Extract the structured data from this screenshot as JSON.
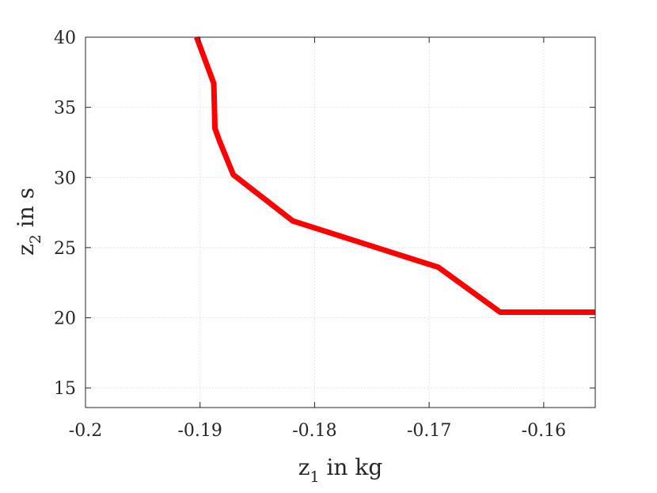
{
  "chart_data": {
    "type": "line",
    "xlabel": {
      "base": "z",
      "sub": "1",
      "rest": " in kg"
    },
    "ylabel": {
      "base": "z",
      "sub": "2",
      "rest": " in s"
    },
    "xlim": [
      -0.2,
      -0.1555
    ],
    "ylim": [
      13.6,
      40
    ],
    "xticks": [
      -0.2,
      -0.19,
      -0.18,
      -0.17,
      -0.16
    ],
    "xtick_labels": [
      "-0.2",
      "-0.19",
      "-0.18",
      "-0.17",
      "-0.16"
    ],
    "yticks": [
      15,
      20,
      25,
      30,
      35,
      40
    ],
    "ytick_labels": [
      "15",
      "20",
      "25",
      "30",
      "35",
      "40"
    ],
    "grid": true,
    "series": [
      {
        "color": "#ff0000",
        "x": [
          -0.1903,
          -0.1888,
          -0.1887,
          -0.1883,
          -0.1871,
          -0.1819,
          -0.1692,
          -0.1638,
          -0.1555
        ],
        "y": [
          40.0,
          36.7,
          33.5,
          32.6,
          30.2,
          26.9,
          23.6,
          20.4,
          20.4
        ]
      }
    ]
  }
}
